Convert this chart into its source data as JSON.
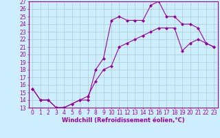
{
  "line1_x": [
    0,
    1,
    2,
    3,
    4,
    5,
    6,
    7,
    8,
    9,
    10,
    11,
    12,
    13,
    14,
    15,
    16,
    17,
    18,
    19,
    20,
    21,
    22,
    23
  ],
  "line1_y": [
    15.5,
    14.0,
    14.0,
    13.0,
    13.0,
    13.5,
    14.0,
    14.0,
    18.0,
    19.5,
    24.5,
    25.0,
    24.5,
    24.5,
    24.5,
    26.5,
    27.0,
    25.0,
    25.0,
    24.0,
    24.0,
    23.5,
    21.5,
    21.0
  ],
  "line2_x": [
    0,
    1,
    2,
    3,
    4,
    5,
    6,
    7,
    8,
    9,
    10,
    11,
    12,
    13,
    14,
    15,
    16,
    17,
    18,
    19,
    20,
    21,
    22,
    23
  ],
  "line2_y": [
    15.5,
    14.0,
    14.0,
    13.0,
    13.0,
    13.5,
    14.0,
    14.5,
    16.5,
    18.0,
    18.5,
    21.0,
    21.5,
    22.0,
    22.5,
    23.0,
    23.5,
    23.5,
    23.5,
    20.5,
    21.5,
    22.0,
    21.5,
    21.0
  ],
  "color": "#990099",
  "bg_color": "#cceeff",
  "grid_color": "#aacccc",
  "xlim": [
    -0.5,
    23.5
  ],
  "ylim": [
    13,
    27
  ],
  "yticks": [
    13,
    14,
    15,
    16,
    17,
    18,
    19,
    20,
    21,
    22,
    23,
    24,
    25,
    26,
    27
  ],
  "xticks": [
    0,
    1,
    2,
    3,
    4,
    5,
    6,
    7,
    8,
    9,
    10,
    11,
    12,
    13,
    14,
    15,
    16,
    17,
    18,
    19,
    20,
    21,
    22,
    23
  ],
  "xlabel": "Windchill (Refroidissement éolien,°C)",
  "marker": "D",
  "marker_size": 2.0,
  "linewidth": 0.8,
  "tick_fontsize": 5.5,
  "xlabel_fontsize": 6.0
}
